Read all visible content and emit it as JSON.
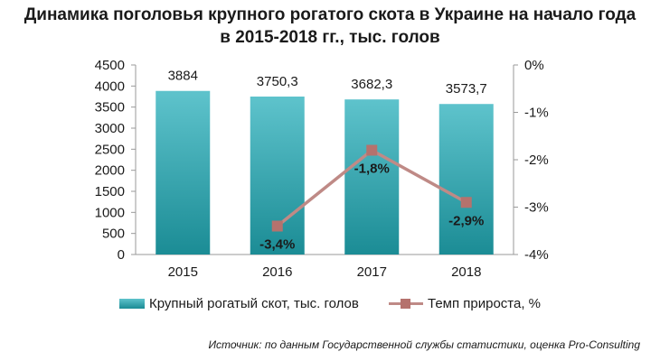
{
  "title": {
    "line1": "Динамика поголовья крупного рогатого скота в Украине на начало года",
    "line2": "в 2015-2018 гг., тыс. голов"
  },
  "source": "Источник: по данным Государственной службы статистики, оценка Pro-Consulting",
  "colors": {
    "bar": "#2aa3ad",
    "line": "#bf8a86",
    "marker": "#b5726d"
  },
  "chart_data": {
    "type": "bar",
    "categories": [
      "2015",
      "2016",
      "2017",
      "2018"
    ],
    "series": [
      {
        "name": "Крупный рогатый скот, тыс. голов",
        "type": "bar",
        "axis": "left",
        "values": [
          3884,
          3750.3,
          3682.3,
          3573.7
        ],
        "labels": [
          "3884",
          "3750,3",
          "3682,3",
          "3573,7"
        ]
      },
      {
        "name": "Темп прироста, %",
        "type": "line",
        "axis": "right",
        "values": [
          null,
          -3.4,
          -1.8,
          -2.9
        ],
        "labels": [
          "",
          "-3,4%",
          "-1,8%",
          "-2,9%"
        ]
      }
    ],
    "y_left": {
      "min": 0,
      "max": 4500,
      "ticks": [
        "0",
        "500",
        "1000",
        "1500",
        "2000",
        "2500",
        "3000",
        "3500",
        "4000",
        "4500"
      ]
    },
    "y_right": {
      "min": -4,
      "max": 0,
      "ticks": [
        "0%",
        "-1%",
        "-2%",
        "-3%",
        "-4%"
      ]
    },
    "grid": false,
    "legend": "bottom"
  }
}
